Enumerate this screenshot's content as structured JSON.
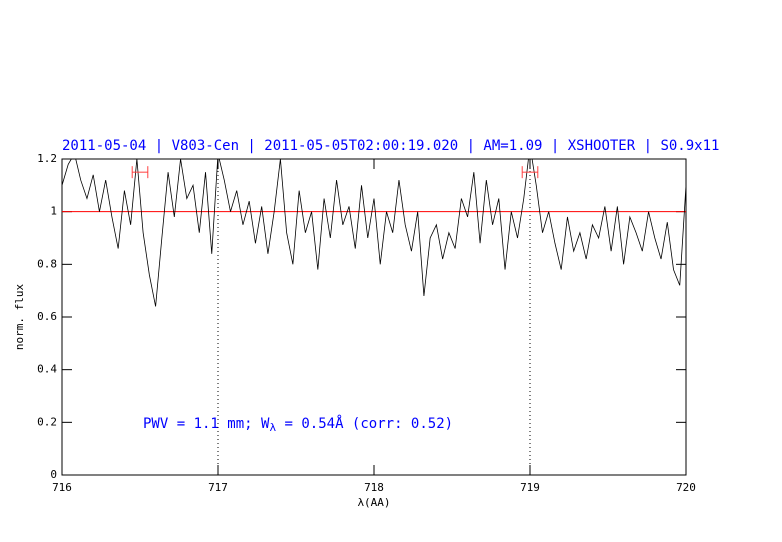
{
  "chart_data": {
    "type": "line",
    "title": "2011-05-04 | V803-Cen | 2011-05-05T02:00:19.020 | AM=1.09 | XSHOOTER | S0.9x11",
    "xlabel": "λ(AA)",
    "ylabel": "norm. flux",
    "annotation": [
      "PWV = 1.1 mm; W",
      "λ",
      " = 0.54Å (corr: 0.52)"
    ],
    "xlim": [
      716,
      720
    ],
    "ylim": [
      0,
      1.2
    ],
    "xticks": [
      716,
      717,
      718,
      719,
      720
    ],
    "yticks": [
      0,
      0.2,
      0.4,
      0.6,
      0.8,
      1,
      1.2
    ],
    "hline": 1,
    "hline_color": "#ff0000",
    "vlines": [
      717,
      719
    ],
    "ranges": [
      {
        "x": [
          716.45,
          716.55
        ],
        "y": 1.15
      },
      {
        "x": [
          718.95,
          719.05
        ],
        "y": 1.15
      }
    ],
    "range_color": "#ff4040",
    "series": [
      {
        "color": "#000000",
        "x": [
          716,
          716.04,
          716.08,
          716.12,
          716.16,
          716.2,
          716.24,
          716.28,
          716.32,
          716.36,
          716.4,
          716.44,
          716.48,
          716.52,
          716.56,
          716.6,
          716.64,
          716.68,
          716.72,
          716.76,
          716.8,
          716.84,
          716.88,
          716.92,
          716.96,
          717,
          717.04,
          717.08,
          717.12,
          717.16,
          717.2,
          717.24,
          717.28,
          717.32,
          717.36,
          717.4,
          717.44,
          717.48,
          717.52,
          717.56,
          717.6,
          717.64,
          717.68,
          717.72,
          717.76,
          717.8,
          717.84,
          717.88,
          717.92,
          717.96,
          718,
          718.04,
          718.08,
          718.12,
          718.16,
          718.2,
          718.24,
          718.28,
          718.32,
          718.36,
          718.4,
          718.44,
          718.48,
          718.52,
          718.56,
          718.6,
          718.64,
          718.68,
          718.72,
          718.76,
          718.8,
          718.84,
          718.88,
          718.92,
          718.96,
          719,
          719.04,
          719.08,
          719.12,
          719.16,
          719.2,
          719.24,
          719.28,
          719.32,
          719.36,
          719.4,
          719.44,
          719.48,
          719.52,
          719.56,
          719.6,
          719.64,
          719.68,
          719.72,
          719.76,
          719.8,
          719.84,
          719.88,
          719.92,
          719.96,
          720
        ],
        "values": [
          1.1,
          1.18,
          1.22,
          1.12,
          1.05,
          1.14,
          1.0,
          1.12,
          0.98,
          0.86,
          1.08,
          0.95,
          1.2,
          0.92,
          0.76,
          0.64,
          0.9,
          1.15,
          0.98,
          1.2,
          1.05,
          1.1,
          0.92,
          1.15,
          0.84,
          1.22,
          1.12,
          1.0,
          1.08,
          0.95,
          1.04,
          0.88,
          1.02,
          0.84,
          1.0,
          1.2,
          0.92,
          0.8,
          1.08,
          0.92,
          1.0,
          0.78,
          1.05,
          0.9,
          1.12,
          0.95,
          1.02,
          0.86,
          1.1,
          0.9,
          1.05,
          0.8,
          1.0,
          0.92,
          1.12,
          0.95,
          0.85,
          1.0,
          0.68,
          0.9,
          0.95,
          0.82,
          0.92,
          0.86,
          1.05,
          0.98,
          1.15,
          0.88,
          1.12,
          0.95,
          1.05,
          0.78,
          1.0,
          0.9,
          1.05,
          1.25,
          1.1,
          0.92,
          1.0,
          0.88,
          0.78,
          0.98,
          0.85,
          0.92,
          0.82,
          0.95,
          0.9,
          1.02,
          0.85,
          1.02,
          0.8,
          0.98,
          0.92,
          0.85,
          1.0,
          0.9,
          0.82,
          0.96,
          0.78,
          0.72,
          1.1
        ]
      }
    ]
  }
}
